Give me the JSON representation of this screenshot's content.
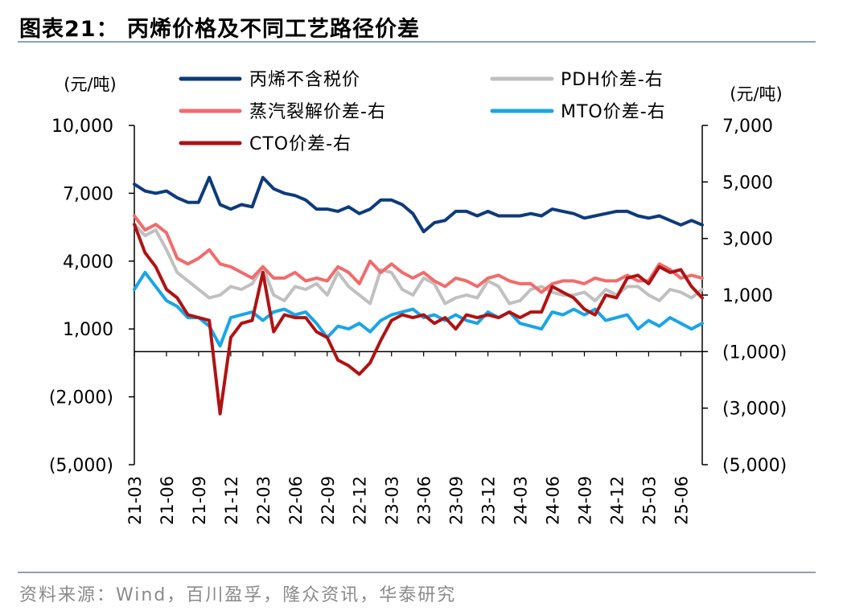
{
  "title": "图表21：   丙烯价格及不同工艺路径价差",
  "source": "资料来源：Wind，百川盈孚，隆众资讯，华泰研究",
  "chart_data": {
    "type": "line",
    "left_unit": "(元/吨)",
    "right_unit": "(元/吨)",
    "left_axis": {
      "ylim": [
        -5000,
        10000
      ],
      "ticks": [
        10000,
        7000,
        4000,
        1000,
        -2000,
        -5000
      ],
      "tick_labels": [
        "10,000",
        "7,000",
        "4,000",
        "1,000",
        "(2,000)",
        "(5,000)"
      ]
    },
    "right_axis": {
      "ylim": [
        -5000,
        7000
      ],
      "ticks": [
        7000,
        5000,
        3000,
        1000,
        -1000,
        -3000,
        -5000
      ],
      "tick_labels": [
        "7,000",
        "5,000",
        "3,000",
        "1,000",
        "(1,000)",
        "(3,000)",
        "(5,000)"
      ]
    },
    "x_tick_labels": [
      "21-03",
      "21-06",
      "21-09",
      "21-12",
      "22-03",
      "22-06",
      "22-09",
      "22-12",
      "23-03",
      "23-06",
      "23-09",
      "23-12",
      "24-03",
      "24-06",
      "24-09",
      "24-12",
      "25-03",
      "25-06"
    ],
    "x": [
      "21-03",
      "21-04",
      "21-05",
      "21-06",
      "21-07",
      "21-08",
      "21-09",
      "21-10",
      "21-11",
      "21-12",
      "22-01",
      "22-02",
      "22-03",
      "22-04",
      "22-05",
      "22-06",
      "22-07",
      "22-08",
      "22-09",
      "22-10",
      "22-11",
      "22-12",
      "23-01",
      "23-02",
      "23-03",
      "23-04",
      "23-05",
      "23-06",
      "23-07",
      "23-08",
      "23-09",
      "23-10",
      "23-11",
      "23-12",
      "24-01",
      "24-02",
      "24-03",
      "24-04",
      "24-05",
      "24-06",
      "24-07",
      "24-08",
      "24-09",
      "24-10",
      "24-11",
      "24-12",
      "25-01",
      "25-02",
      "25-03",
      "25-04",
      "25-05",
      "25-06",
      "25-07",
      "25-08"
    ],
    "series": [
      {
        "name": "丙烯不含税价",
        "axis": "left",
        "color": "#0d3b7c",
        "values": [
          7400,
          7100,
          7000,
          7100,
          6800,
          6600,
          6600,
          7700,
          6500,
          6300,
          6500,
          6400,
          7700,
          7200,
          7000,
          6900,
          6700,
          6300,
          6300,
          6200,
          6400,
          6100,
          6300,
          6700,
          6700,
          6500,
          6100,
          5300,
          5700,
          5800,
          6200,
          6200,
          6000,
          6200,
          6000,
          6000,
          6000,
          6100,
          6000,
          6300,
          6200,
          6100,
          5900,
          6000,
          6100,
          6200,
          6200,
          6000,
          5900,
          6000,
          5800,
          5600,
          5800,
          5600
        ]
      },
      {
        "name": "PDH价差-右",
        "axis": "right",
        "color": "#c0c0c0",
        "values": [
          3500,
          3100,
          3300,
          2600,
          1800,
          1500,
          1200,
          900,
          1000,
          1300,
          1200,
          1400,
          2000,
          1000,
          800,
          1300,
          1200,
          1400,
          1000,
          1800,
          1300,
          1000,
          700,
          1900,
          1800,
          1200,
          1000,
          1600,
          1400,
          700,
          900,
          1000,
          900,
          1500,
          1300,
          700,
          800,
          1200,
          1300,
          1100,
          1000,
          1000,
          1100,
          800,
          1200,
          1000,
          1300,
          1300,
          1000,
          800,
          1200,
          1100,
          900,
          1200
        ]
      },
      {
        "name": "蒸汽裂解价差-右",
        "axis": "right",
        "color": "#f26b6b",
        "values": [
          3800,
          3300,
          3500,
          3200,
          2300,
          2100,
          2300,
          2600,
          2100,
          2000,
          1800,
          1600,
          2000,
          1600,
          1600,
          1800,
          1500,
          1600,
          1500,
          2000,
          1800,
          1400,
          2200,
          1800,
          2100,
          1800,
          1600,
          1800,
          1500,
          1300,
          1600,
          1500,
          1300,
          1600,
          1700,
          1500,
          1400,
          1400,
          1100,
          1400,
          1500,
          1500,
          1400,
          1600,
          1500,
          1500,
          1700,
          1500,
          1500,
          2100,
          1900,
          1600,
          1700,
          1600
        ]
      },
      {
        "name": "MTO价差-右",
        "axis": "right",
        "color": "#19a5e8",
        "values": [
          1200,
          1800,
          1300,
          800,
          600,
          200,
          200,
          -100,
          -800,
          200,
          300,
          400,
          100,
          400,
          500,
          300,
          400,
          0,
          -500,
          -100,
          -200,
          0,
          -300,
          100,
          300,
          400,
          500,
          200,
          300,
          100,
          300,
          100,
          0,
          400,
          200,
          400,
          0,
          -100,
          -200,
          400,
          300,
          500,
          300,
          500,
          100,
          200,
          300,
          -200,
          100,
          -100,
          200,
          0,
          -200,
          0
        ]
      },
      {
        "name": "CTO价差-右",
        "axis": "right",
        "color": "#b01212",
        "values": [
          3500,
          2500,
          2000,
          1200,
          900,
          300,
          200,
          100,
          -3200,
          -500,
          0,
          100,
          1800,
          -300,
          300,
          200,
          200,
          -300,
          -500,
          -1300,
          -1500,
          -1800,
          -1400,
          -600,
          100,
          300,
          200,
          300,
          0,
          200,
          -200,
          300,
          200,
          300,
          200,
          400,
          200,
          400,
          400,
          1300,
          1100,
          900,
          500,
          300,
          1000,
          900,
          1600,
          1700,
          1400,
          2000,
          1800,
          1900,
          1300,
          900
        ]
      }
    ]
  }
}
